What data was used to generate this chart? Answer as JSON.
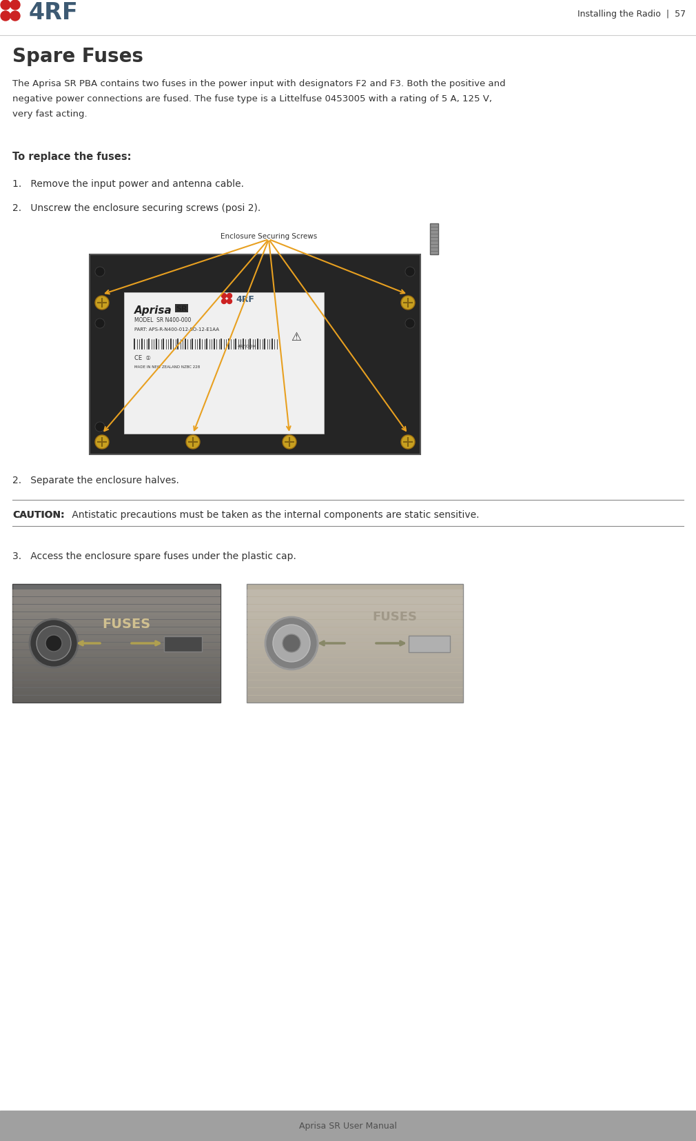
{
  "page_width": 10.1,
  "page_height": 16.56,
  "dpi": 100,
  "bg_color": "#ffffff",
  "footer_bg_color": "#a0a0a0",
  "footer_text": "Aprisa SR User Manual",
  "footer_text_color": "#505050",
  "header_right_text": "Installing the Radio  |  57",
  "header_text_color": "#333333",
  "logo_dot_color": "#cc2222",
  "logo_text_color": "#3d5a73",
  "title": "Spare Fuses",
  "title_color": "#333333",
  "body_color": "#333333",
  "body_line1": "The Aprisa SR PBA contains two fuses in the power input with designators F2 and F3. Both the positive and",
  "body_line2": "negative power connections are fused. The fuse type is a Littelfuse 0453005 with a rating of 5 A, 125 V,",
  "body_line3": "very fast acting.",
  "bold_label": "To replace the fuses:",
  "step1": "1.   Remove the input power and antenna cable.",
  "step2": "2.   Unscrew the enclosure securing screws (posi 2).",
  "step2b": "2.   Separate the enclosure halves.",
  "step3": "3.   Access the enclosure spare fuses under the plastic cap.",
  "caution_label": "CAUTION:",
  "caution_text": " Antistatic precautions must be taken as the internal components are static sensitive.",
  "img_label": "Enclosure Securing Screws",
  "arrow_color": "#e8a020",
  "device_color": "#252525",
  "device_border": "#555555",
  "label_color": "#eeeeee",
  "screw_color": "#c8a020",
  "photo1_bg": "#6a6a6a",
  "photo2_bg": "#b8b0a0",
  "fuses_color1": "#d0c090",
  "fuses_color2": "#a09888"
}
